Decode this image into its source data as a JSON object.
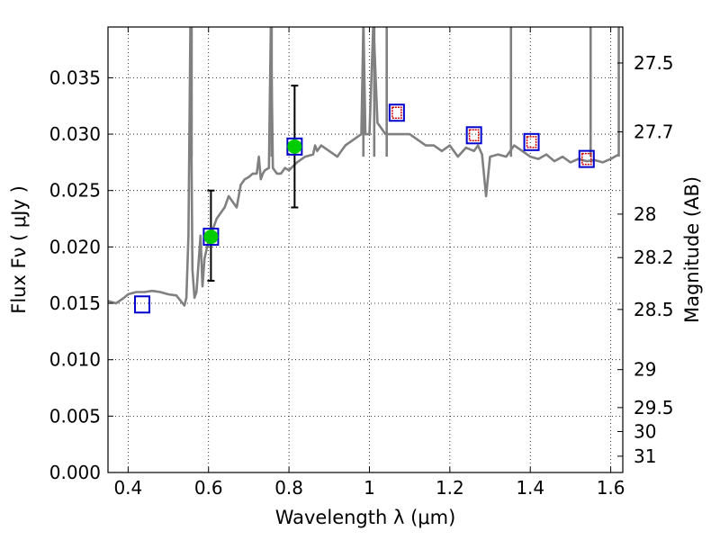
{
  "chart_data": {
    "type": "line",
    "title": "",
    "xlabel": "Wavelength  λ (μm)",
    "ylabel": "Flux  Fν  ( μJy )",
    "y2label": "Magnitude (AB)",
    "xlim": [
      0.35,
      1.63
    ],
    "ylim": [
      0.0,
      0.0395
    ],
    "grid": true,
    "x_ticks": [
      {
        "v": 0.4,
        "label": "0.4"
      },
      {
        "v": 0.6,
        "label": "0.6"
      },
      {
        "v": 0.8,
        "label": "0.8"
      },
      {
        "v": 1.0,
        "label": "1"
      },
      {
        "v": 1.2,
        "label": "1.2"
      },
      {
        "v": 1.4,
        "label": "1.4"
      },
      {
        "v": 1.6,
        "label": "1.6"
      }
    ],
    "y_ticks": [
      {
        "v": 0.0,
        "label": "0.000"
      },
      {
        "v": 0.005,
        "label": "0.005"
      },
      {
        "v": 0.01,
        "label": "0.010"
      },
      {
        "v": 0.015,
        "label": "0.015"
      },
      {
        "v": 0.02,
        "label": "0.020"
      },
      {
        "v": 0.025,
        "label": "0.025"
      },
      {
        "v": 0.03,
        "label": "0.030"
      },
      {
        "v": 0.035,
        "label": "0.035"
      }
    ],
    "y2_ticks": [
      {
        "mag": 27.5,
        "label": "27.5"
      },
      {
        "mag": 27.7,
        "label": "27.7"
      },
      {
        "mag": 28.0,
        "label": "28"
      },
      {
        "mag": 28.2,
        "label": "28.2"
      },
      {
        "mag": 28.5,
        "label": "28.5"
      },
      {
        "mag": 29.0,
        "label": "29"
      },
      {
        "mag": 29.5,
        "label": "29.5"
      },
      {
        "mag": 30.0,
        "label": "30"
      },
      {
        "mag": 31.0,
        "label": "31"
      }
    ],
    "spectrum": {
      "color": "#808080",
      "x": [
        0.35,
        0.37,
        0.39,
        0.4,
        0.42,
        0.44,
        0.46,
        0.48,
        0.5,
        0.52,
        0.54,
        0.545,
        0.55,
        0.555,
        0.56,
        0.565,
        0.57,
        0.58,
        0.585,
        0.59,
        0.6,
        0.61,
        0.62,
        0.63,
        0.64,
        0.65,
        0.66,
        0.67,
        0.68,
        0.69,
        0.7,
        0.71,
        0.72,
        0.725,
        0.73,
        0.735,
        0.74,
        0.75,
        0.755,
        0.76,
        0.77,
        0.78,
        0.79,
        0.8,
        0.82,
        0.84,
        0.86,
        0.865,
        0.87,
        0.88,
        0.9,
        0.92,
        0.94,
        0.96,
        0.98,
        0.985,
        0.99,
        1.0,
        1.01,
        1.02,
        1.03,
        1.04,
        1.06,
        1.08,
        1.1,
        1.12,
        1.14,
        1.16,
        1.18,
        1.2,
        1.22,
        1.24,
        1.26,
        1.27,
        1.28,
        1.29,
        1.3,
        1.32,
        1.34,
        1.36,
        1.38,
        1.4,
        1.42,
        1.44,
        1.46,
        1.48,
        1.5,
        1.52,
        1.54,
        1.56,
        1.58,
        1.6,
        1.62
      ],
      "y": [
        0.0152,
        0.015,
        0.0155,
        0.0158,
        0.016,
        0.016,
        0.0161,
        0.016,
        0.0158,
        0.0157,
        0.0148,
        0.0155,
        0.021,
        0.04,
        0.018,
        0.0155,
        0.016,
        0.021,
        0.0165,
        0.019,
        0.0205,
        0.0215,
        0.0225,
        0.023,
        0.0235,
        0.0245,
        0.024,
        0.0235,
        0.0255,
        0.026,
        0.0262,
        0.0265,
        0.0265,
        0.028,
        0.026,
        0.0265,
        0.0268,
        0.027,
        0.04,
        0.027,
        0.0265,
        0.0265,
        0.027,
        0.0268,
        0.0275,
        0.028,
        0.0282,
        0.029,
        0.0285,
        0.029,
        0.0285,
        0.028,
        0.029,
        0.0295,
        0.03,
        0.04,
        0.03,
        0.03,
        0.04,
        0.031,
        0.0305,
        0.03,
        0.03,
        0.03,
        0.03,
        0.0295,
        0.029,
        0.029,
        0.0285,
        0.029,
        0.028,
        0.0288,
        0.0285,
        0.029,
        0.0282,
        0.0245,
        0.028,
        0.0282,
        0.028,
        0.029,
        0.0285,
        0.028,
        0.0278,
        0.0282,
        0.0276,
        0.028,
        0.0275,
        0.0278,
        0.0276,
        0.0277,
        0.0275,
        0.0278,
        0.0282
      ]
    },
    "spikes": [
      {
        "x": 0.558,
        "y": 0.0395
      },
      {
        "x": 0.757,
        "y": 0.0395
      },
      {
        "x": 0.985,
        "y": 0.0395
      },
      {
        "x": 1.012,
        "y": 0.0395
      },
      {
        "x": 1.043,
        "y": 0.0395
      },
      {
        "x": 1.352,
        "y": 0.0395
      },
      {
        "x": 1.55,
        "y": 0.0395
      },
      {
        "x": 1.62,
        "y": 0.0395
      }
    ],
    "blue_squares": [
      {
        "x": 0.435,
        "y": 0.0149
      },
      {
        "x": 0.606,
        "y": 0.0209
      },
      {
        "x": 0.814,
        "y": 0.0289
      },
      {
        "x": 1.068,
        "y": 0.0319
      },
      {
        "x": 1.26,
        "y": 0.0299
      },
      {
        "x": 1.403,
        "y": 0.0293
      },
      {
        "x": 1.54,
        "y": 0.0278
      }
    ],
    "red_squares": [
      {
        "x": 1.068,
        "y": 0.0319
      },
      {
        "x": 1.26,
        "y": 0.0299
      },
      {
        "x": 1.403,
        "y": 0.0293
      },
      {
        "x": 1.54,
        "y": 0.0278
      }
    ],
    "green_points": [
      {
        "x": 0.606,
        "y": 0.0209,
        "yerr_low": 0.017,
        "yerr_high": 0.025
      },
      {
        "x": 0.814,
        "y": 0.0289,
        "yerr_low": 0.0235,
        "yerr_high": 0.0343
      }
    ],
    "colors": {
      "spectrum": "#808080",
      "square_outer": "#0000cc",
      "square_inner": "#cc0000",
      "point": "#00cc00",
      "errorbar": "#000000"
    }
  }
}
